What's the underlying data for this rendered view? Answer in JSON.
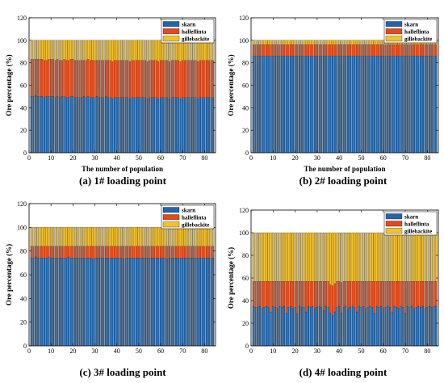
{
  "chart_data": [
    {
      "type": "bar",
      "stacked": true,
      "caption": "(a) 1# loading point",
      "xlabel": "The number of population",
      "ylabel": "Ore percentage (%)",
      "xlim": [
        0,
        85
      ],
      "ylim": [
        0,
        120
      ],
      "xticks": [
        0,
        10,
        20,
        30,
        40,
        50,
        60,
        70,
        80
      ],
      "yticks": [
        0,
        20,
        40,
        60,
        80,
        100,
        120
      ],
      "count": 84,
      "legend_position": "top-right",
      "grid": false,
      "series": [
        {
          "name": "skarn",
          "color": "#2166AC",
          "values": [
            50,
            50,
            51,
            50,
            50,
            50,
            49,
            50,
            50,
            50,
            50,
            49,
            50,
            49,
            50,
            50,
            49,
            49,
            50,
            50,
            49,
            49,
            49,
            49,
            50,
            49,
            50,
            49,
            49,
            49,
            50,
            49,
            49,
            49,
            50,
            49,
            49,
            48,
            49,
            49,
            49,
            49,
            49,
            49,
            49,
            48,
            49,
            49,
            49,
            49,
            49,
            49,
            49,
            48,
            49,
            49,
            49,
            49,
            48,
            49,
            49,
            49,
            49,
            48,
            49,
            49,
            49,
            49,
            48,
            49,
            49,
            49,
            49,
            49,
            49,
            49,
            48,
            49,
            49,
            49,
            49,
            49,
            49,
            49
          ]
        },
        {
          "name": "halleflinta",
          "color": "#E34A1A",
          "values": [
            33,
            33,
            32,
            33,
            33,
            33,
            33,
            32,
            33,
            33,
            33,
            33,
            33,
            33,
            32,
            33,
            33,
            33,
            33,
            33,
            33,
            33,
            33,
            33,
            32,
            33,
            33,
            33,
            33,
            33,
            32,
            33,
            33,
            33,
            32,
            33,
            33,
            33,
            33,
            33,
            33,
            33,
            33,
            33,
            33,
            33,
            33,
            33,
            33,
            33,
            33,
            33,
            33,
            33,
            33,
            33,
            33,
            33,
            33,
            33,
            33,
            33,
            33,
            33,
            33,
            33,
            33,
            33,
            33,
            33,
            33,
            33,
            33,
            33,
            33,
            33,
            33,
            33,
            33,
            33,
            33,
            33,
            33,
            33
          ]
        },
        {
          "name": "gillebackite",
          "color": "#F2C12E",
          "values": [
            17,
            17,
            17,
            17,
            17,
            17,
            18,
            18,
            17,
            17,
            17,
            18,
            17,
            18,
            18,
            17,
            18,
            18,
            17,
            17,
            18,
            18,
            18,
            18,
            18,
            18,
            17,
            18,
            18,
            18,
            18,
            18,
            18,
            18,
            18,
            18,
            18,
            19,
            18,
            18,
            18,
            18,
            18,
            18,
            18,
            19,
            18,
            18,
            18,
            18,
            18,
            18,
            18,
            19,
            18,
            18,
            18,
            18,
            19,
            18,
            18,
            18,
            18,
            19,
            18,
            18,
            18,
            18,
            19,
            18,
            18,
            18,
            18,
            18,
            18,
            18,
            19,
            18,
            18,
            18,
            18,
            18,
            18,
            18
          ]
        }
      ]
    },
    {
      "type": "bar",
      "stacked": true,
      "caption": "(b) 2# loading point",
      "xlabel": "The number of population",
      "ylabel": "Ore percentage (%)",
      "xlim": [
        0,
        85
      ],
      "ylim": [
        0,
        120
      ],
      "xticks": [
        0,
        10,
        20,
        30,
        40,
        50,
        60,
        70,
        80
      ],
      "yticks": [
        0,
        20,
        40,
        60,
        80,
        100,
        120
      ],
      "count": 84,
      "legend_position": "top-right",
      "grid": false,
      "series": [
        {
          "name": "skarn",
          "color": "#2166AC",
          "values": [
            86,
            86,
            86,
            86,
            86,
            86,
            86,
            86,
            86,
            86,
            86,
            86,
            86,
            86,
            86,
            86,
            86,
            86,
            86,
            86,
            86,
            86,
            86,
            86,
            86,
            86,
            86,
            86,
            86,
            86,
            86,
            86,
            86,
            86,
            86,
            86,
            86,
            86,
            86,
            86,
            86,
            86,
            86,
            86,
            86,
            86,
            86,
            86,
            86,
            86,
            86,
            86,
            86,
            86,
            86,
            86,
            86,
            86,
            86,
            86,
            86,
            86,
            86,
            86,
            86,
            86,
            86,
            86,
            86,
            86,
            86,
            86,
            86,
            86,
            86,
            86,
            86,
            86,
            86,
            86,
            86,
            86,
            86,
            86
          ]
        },
        {
          "name": "halleflinta",
          "color": "#E34A1A",
          "values": [
            10,
            10,
            10,
            10,
            10,
            10,
            10,
            10,
            10,
            10,
            10,
            10,
            10,
            10,
            10,
            10,
            10,
            10,
            10,
            10,
            10,
            10,
            10,
            10,
            10,
            10,
            10,
            10,
            10,
            10,
            10,
            10,
            10,
            10,
            10,
            10,
            10,
            10,
            10,
            10,
            10,
            10,
            10,
            10,
            10,
            10,
            10,
            10,
            10,
            10,
            10,
            10,
            10,
            10,
            10,
            10,
            10,
            10,
            10,
            10,
            10,
            10,
            10,
            10,
            10,
            10,
            10,
            10,
            10,
            10,
            10,
            10,
            10,
            10,
            10,
            10,
            10,
            10,
            10,
            10,
            10,
            10,
            10,
            10
          ]
        },
        {
          "name": "gillebackite",
          "color": "#F2C12E",
          "values": [
            4,
            4,
            4,
            4,
            4,
            4,
            4,
            4,
            4,
            4,
            4,
            4,
            4,
            4,
            4,
            4,
            4,
            4,
            4,
            4,
            4,
            4,
            4,
            4,
            4,
            4,
            4,
            4,
            4,
            4,
            4,
            4,
            4,
            4,
            4,
            4,
            4,
            4,
            4,
            4,
            4,
            4,
            4,
            4,
            4,
            4,
            4,
            4,
            4,
            4,
            4,
            4,
            4,
            4,
            4,
            4,
            4,
            4,
            4,
            4,
            4,
            4,
            4,
            4,
            4,
            4,
            4,
            4,
            4,
            4,
            4,
            4,
            4,
            4,
            4,
            4,
            4,
            4,
            4,
            4,
            4,
            4,
            4,
            4
          ]
        }
      ]
    },
    {
      "type": "bar",
      "stacked": true,
      "caption": "(c) 3# loading point",
      "xlabel": "",
      "ylabel": "Ore percentage (%)",
      "xlim": [
        0,
        85
      ],
      "ylim": [
        0,
        120
      ],
      "xticks": [
        0,
        10,
        20,
        30,
        40,
        50,
        60,
        70,
        80
      ],
      "yticks": [
        0,
        20,
        40,
        60,
        80,
        100,
        120
      ],
      "count": 84,
      "legend_position": "top-right",
      "grid": false,
      "series": [
        {
          "name": "skarn",
          "color": "#2166AC",
          "values": [
            74,
            74,
            75,
            74,
            74,
            74,
            74,
            74,
            75,
            74,
            74,
            74,
            74,
            74,
            74,
            74,
            74,
            75,
            74,
            74,
            74,
            74,
            74,
            74,
            74,
            74,
            74,
            74,
            73,
            74,
            74,
            74,
            74,
            74,
            74,
            74,
            74,
            74,
            74,
            74,
            74,
            74,
            73,
            74,
            74,
            74,
            74,
            74,
            74,
            74,
            74,
            74,
            74,
            74,
            74,
            74,
            74,
            74,
            74,
            74,
            74,
            74,
            73,
            74,
            74,
            74,
            74,
            74,
            74,
            74,
            74,
            74,
            74,
            74,
            74,
            74,
            74,
            74,
            74,
            74,
            74,
            74,
            74,
            74
          ]
        },
        {
          "name": "halleflinta",
          "color": "#E34A1A",
          "values": [
            10,
            10,
            9,
            10,
            10,
            10,
            10,
            10,
            9,
            10,
            10,
            10,
            10,
            10,
            10,
            10,
            10,
            9,
            10,
            10,
            10,
            10,
            10,
            10,
            10,
            10,
            10,
            10,
            11,
            10,
            10,
            10,
            10,
            10,
            10,
            10,
            10,
            10,
            10,
            10,
            10,
            10,
            11,
            10,
            10,
            10,
            10,
            10,
            10,
            10,
            10,
            10,
            10,
            10,
            10,
            10,
            10,
            10,
            10,
            10,
            10,
            10,
            11,
            10,
            10,
            10,
            10,
            10,
            10,
            10,
            10,
            10,
            10,
            10,
            10,
            10,
            10,
            10,
            10,
            10,
            10,
            10,
            10,
            10
          ]
        },
        {
          "name": "gillebackite",
          "color": "#F2C12E",
          "values": [
            16,
            16,
            16,
            16,
            16,
            16,
            16,
            16,
            16,
            16,
            16,
            16,
            16,
            16,
            16,
            16,
            16,
            16,
            16,
            16,
            16,
            16,
            16,
            16,
            16,
            16,
            16,
            16,
            16,
            16,
            16,
            16,
            16,
            16,
            16,
            16,
            16,
            16,
            16,
            16,
            16,
            16,
            16,
            16,
            16,
            16,
            16,
            16,
            16,
            16,
            16,
            16,
            16,
            16,
            16,
            16,
            16,
            16,
            16,
            16,
            16,
            16,
            16,
            16,
            16,
            16,
            16,
            16,
            16,
            16,
            16,
            16,
            16,
            16,
            16,
            16,
            16,
            16,
            16,
            16,
            16,
            16,
            16,
            16
          ]
        }
      ]
    },
    {
      "type": "bar",
      "stacked": true,
      "caption": "(d) 4# loading point",
      "xlabel": "",
      "ylabel": "Ore percentage (%)",
      "xlim": [
        0,
        85
      ],
      "ylim": [
        0,
        120
      ],
      "xticks": [
        0,
        10,
        20,
        30,
        40,
        50,
        60,
        70,
        80
      ],
      "yticks": [
        0,
        20,
        40,
        60,
        80,
        100,
        120
      ],
      "count": 84,
      "legend_position": "top-right",
      "grid": false,
      "series": [
        {
          "name": "skarn",
          "color": "#2166AC",
          "values": [
            35,
            34,
            34,
            35,
            33,
            34,
            35,
            34,
            30,
            35,
            34,
            33,
            35,
            34,
            35,
            29,
            34,
            35,
            33,
            34,
            28,
            35,
            34,
            34,
            30,
            35,
            34,
            35,
            33,
            34,
            35,
            34,
            31,
            35,
            34,
            29,
            27,
            30,
            34,
            35,
            29,
            34,
            35,
            33,
            34,
            35,
            34,
            30,
            35,
            34,
            35,
            33,
            34,
            35,
            34,
            29,
            35,
            34,
            35,
            33,
            34,
            35,
            34,
            30,
            35,
            34,
            33,
            35,
            34,
            29,
            35,
            34,
            35,
            33,
            34,
            35,
            34,
            35,
            33,
            34,
            35,
            34,
            35,
            35
          ]
        },
        {
          "name": "halleflinta",
          "color": "#E34A1A",
          "values": [
            22,
            23,
            23,
            22,
            24,
            23,
            22,
            23,
            27,
            22,
            23,
            24,
            22,
            23,
            22,
            28,
            23,
            22,
            24,
            23,
            29,
            22,
            23,
            23,
            27,
            22,
            23,
            22,
            24,
            23,
            22,
            23,
            26,
            22,
            23,
            25,
            26,
            25,
            23,
            22,
            27,
            23,
            22,
            24,
            23,
            22,
            23,
            27,
            22,
            23,
            22,
            24,
            23,
            22,
            23,
            28,
            22,
            23,
            22,
            24,
            23,
            22,
            23,
            27,
            22,
            23,
            24,
            22,
            23,
            28,
            22,
            23,
            22,
            24,
            23,
            22,
            23,
            22,
            24,
            23,
            22,
            23,
            22,
            22
          ]
        },
        {
          "name": "gillebackite",
          "color": "#F2C12E",
          "values": [
            43,
            43,
            43,
            43,
            43,
            43,
            43,
            43,
            43,
            43,
            43,
            43,
            43,
            43,
            43,
            43,
            43,
            43,
            43,
            43,
            43,
            43,
            43,
            43,
            43,
            43,
            43,
            43,
            43,
            43,
            43,
            43,
            43,
            43,
            43,
            46,
            47,
            45,
            43,
            43,
            44,
            43,
            43,
            43,
            43,
            43,
            43,
            43,
            43,
            43,
            43,
            43,
            43,
            43,
            43,
            43,
            43,
            43,
            43,
            43,
            43,
            43,
            43,
            43,
            43,
            43,
            43,
            43,
            43,
            43,
            43,
            43,
            43,
            43,
            43,
            43,
            43,
            43,
            43,
            43,
            43,
            43,
            43,
            43
          ]
        }
      ]
    }
  ]
}
